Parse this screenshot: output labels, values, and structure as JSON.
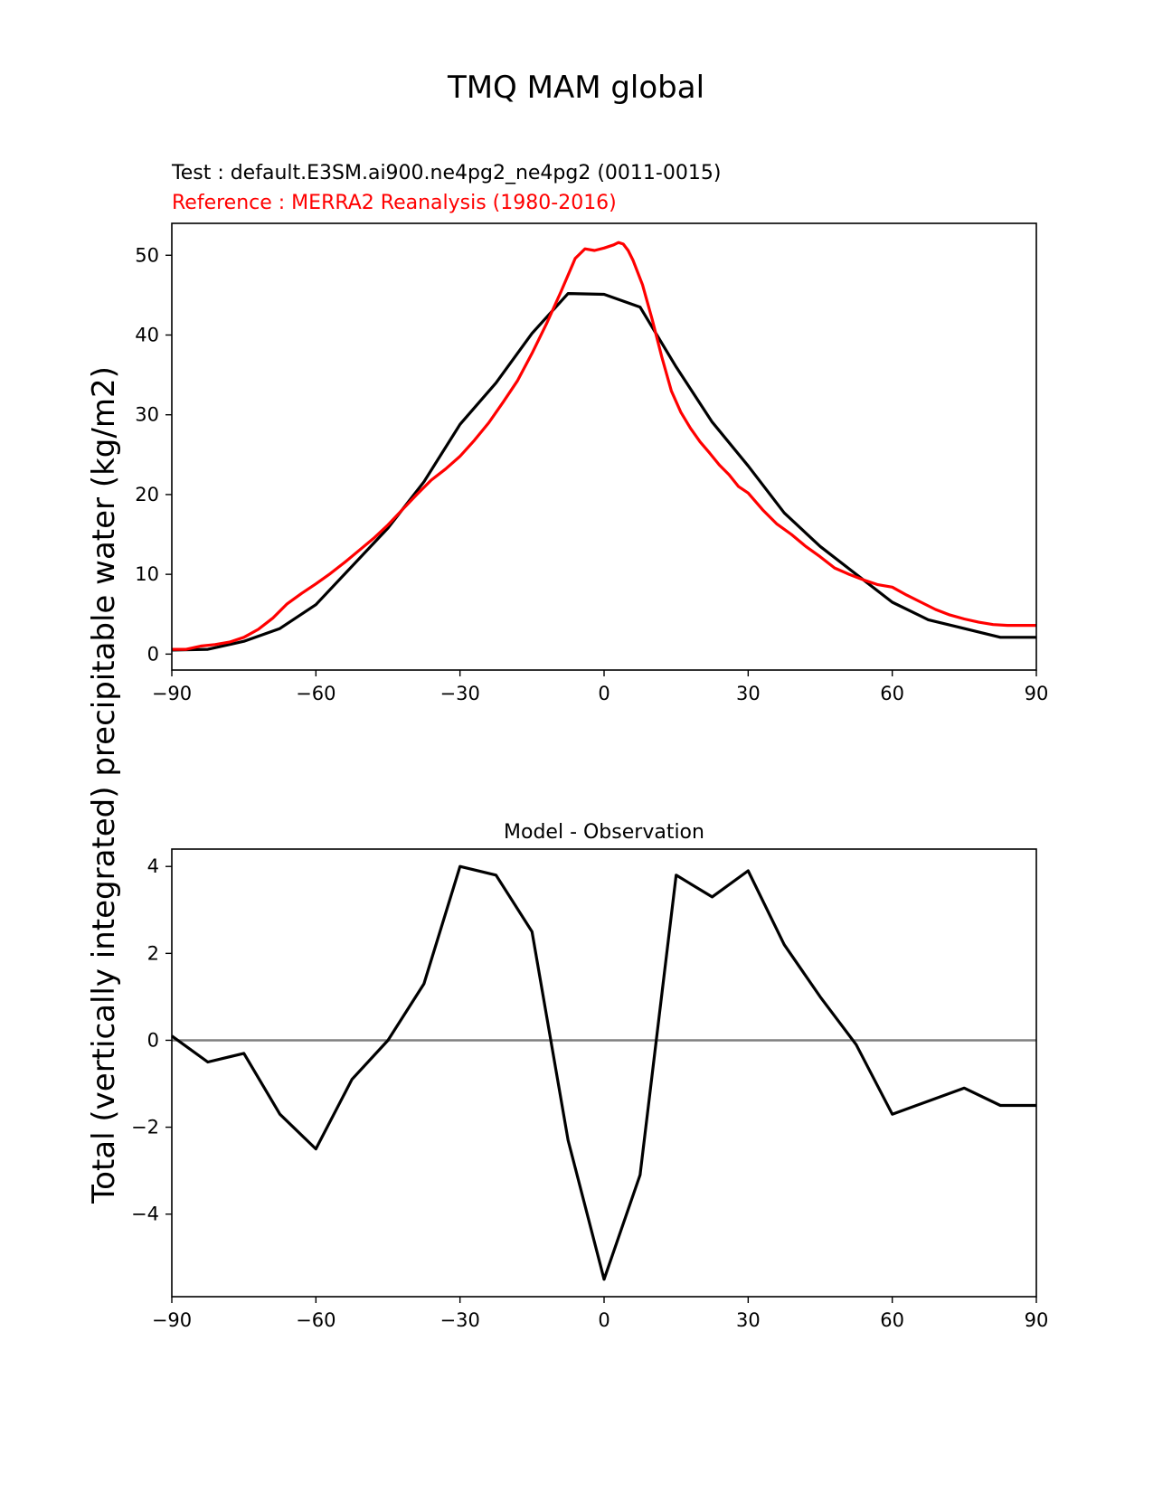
{
  "figure": {
    "title": "TMQ MAM global",
    "test_label": "Test : default.E3SM.ai900.ne4pg2_ne4pg2 (0011-0015)",
    "reference_label": "Reference : MERRA2 Reanalysis (1980-2016)",
    "ylabel": "Total (vertically integrated) precipitable water (kg/m2)"
  },
  "colors": {
    "test": "#000000",
    "reference": "#ff0000",
    "zero_line": "#808080"
  },
  "chart_data": [
    {
      "type": "line",
      "name": "top",
      "title": "",
      "xlabel": "",
      "ylabel": "Total (vertically integrated) precipitable water (kg/m2)",
      "xlim": [
        -90,
        90
      ],
      "ylim": [
        -2,
        54
      ],
      "xticks": [
        -90,
        -60,
        -30,
        0,
        30,
        60,
        90
      ],
      "xtick_labels": [
        "−90",
        "−60",
        "−30",
        "0",
        "30",
        "60",
        "90"
      ],
      "yticks": [
        0,
        10,
        20,
        30,
        40,
        50
      ],
      "ytick_labels": [
        "0",
        "10",
        "20",
        "30",
        "40",
        "50"
      ],
      "series": [
        {
          "name": "Test",
          "color": "#000000",
          "x": [
            -90,
            -82.5,
            -75,
            -67.5,
            -60,
            -52.5,
            -45,
            -37.5,
            -30,
            -22.5,
            -15,
            -7.5,
            0,
            7.5,
            15,
            22.5,
            30,
            37.5,
            45,
            52.5,
            60,
            67.5,
            75,
            82.5,
            90
          ],
          "y": [
            0.5,
            0.6,
            1.6,
            3.2,
            6.2,
            11,
            15.8,
            21.6,
            28.8,
            34,
            40.2,
            45.2,
            45.1,
            43.5,
            36,
            29.1,
            23.6,
            17.7,
            13.5,
            10,
            6.5,
            4.3,
            3.2,
            2.1,
            2.1
          ]
        },
        {
          "name": "Reference",
          "color": "#ff0000",
          "x": [
            -90,
            -87,
            -84,
            -81,
            -78,
            -75,
            -72,
            -69,
            -66,
            -63,
            -60,
            -57,
            -54,
            -51,
            -48,
            -45,
            -42,
            -39,
            -36,
            -33,
            -30,
            -27,
            -24,
            -21,
            -18,
            -15,
            -12,
            -9,
            -6,
            -4,
            -2,
            0,
            2,
            3,
            4,
            5,
            6,
            8,
            10,
            12,
            14,
            16,
            18,
            20,
            22,
            24,
            26,
            28,
            30,
            33,
            36,
            39,
            42,
            45,
            48,
            51,
            54,
            57,
            60,
            63,
            66,
            69,
            72,
            75,
            78,
            81,
            84,
            87,
            90
          ],
          "y": [
            0.6,
            0.6,
            1.0,
            1.2,
            1.5,
            2.1,
            3.1,
            4.5,
            6.3,
            7.6,
            8.8,
            10.1,
            11.5,
            13,
            14.5,
            16.2,
            18.1,
            20,
            21.8,
            23.2,
            24.8,
            26.8,
            29,
            31.6,
            34.3,
            37.7,
            41.4,
            45.4,
            49.6,
            50.8,
            50.6,
            50.9,
            51.3,
            51.6,
            51.4,
            50.6,
            49.4,
            46.3,
            42.0,
            37.3,
            33.0,
            30.3,
            28.3,
            26.6,
            25.2,
            23.7,
            22.5,
            21.0,
            20.2,
            18.1,
            16.3,
            15,
            13.5,
            12.2,
            10.8,
            10,
            9.3,
            8.7,
            8.4,
            7.4,
            6.5,
            5.6,
            4.9,
            4.4,
            4,
            3.7,
            3.6,
            3.6,
            3.6
          ]
        }
      ]
    },
    {
      "type": "line",
      "name": "bottom",
      "title": "Model - Observation",
      "xlabel": "",
      "ylabel": "",
      "xlim": [
        -90,
        90
      ],
      "ylim": [
        -5.9,
        4.4
      ],
      "xticks": [
        -90,
        -60,
        -30,
        0,
        30,
        60,
        90
      ],
      "xtick_labels": [
        "−90",
        "−60",
        "−30",
        "0",
        "30",
        "60",
        "90"
      ],
      "yticks": [
        -4,
        -2,
        0,
        2,
        4
      ],
      "ytick_labels": [
        "−4",
        "−2",
        "0",
        "2",
        "4"
      ],
      "zero_line": true,
      "series": [
        {
          "name": "Model - Observation",
          "color": "#000000",
          "x": [
            -90,
            -82.5,
            -75,
            -67.5,
            -60,
            -52.5,
            -45,
            -37.5,
            -30,
            -22.5,
            -15,
            -7.5,
            0,
            7.5,
            15,
            22.5,
            30,
            37.5,
            45,
            52.5,
            60,
            67.5,
            75,
            82.5,
            90
          ],
          "y": [
            0.1,
            -0.5,
            -0.3,
            -1.7,
            -2.5,
            -0.9,
            0,
            1.3,
            4,
            3.8,
            2.5,
            -2.3,
            -5.5,
            -3.1,
            3.8,
            3.3,
            3.9,
            2.2,
            1,
            -0.1,
            -1.7,
            -1.4,
            -1.1,
            -1.5,
            -1.5
          ]
        }
      ]
    }
  ]
}
